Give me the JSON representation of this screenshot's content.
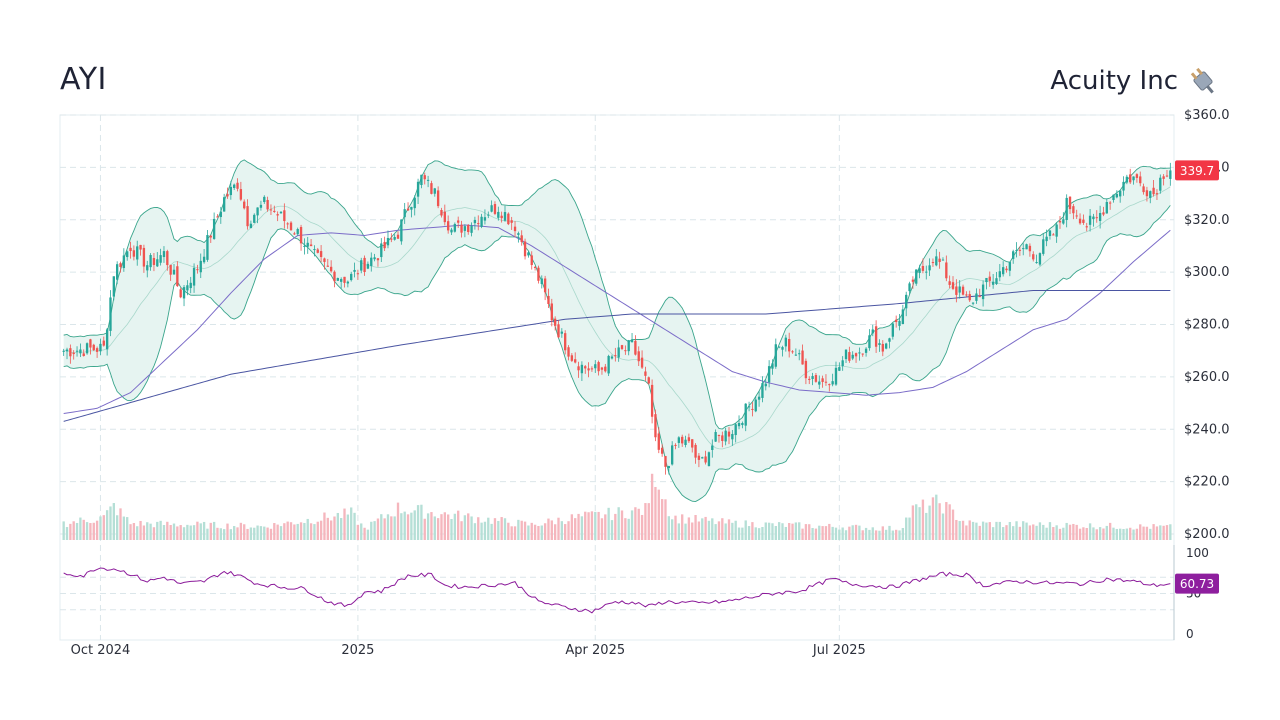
{
  "header": {
    "ticker": "AYI",
    "company": "Acuity Inc",
    "logo_icon": "plug-icon"
  },
  "colors": {
    "up": "#26a69a",
    "down": "#ef5350",
    "band_fill": "#e6f4f1",
    "band_line": "#3aa58c",
    "ma50": "#7b6cc8",
    "ma200": "#4a55a2",
    "rsi_line": "#8b1a9a",
    "price_badge": "#f23645",
    "rsi_badge": "#8e1f9e"
  },
  "chart_data": {
    "type": "candlestick",
    "price_axis": {
      "ylim": [
        200,
        360
      ],
      "ticks": [
        "$360.0",
        "$340.0",
        "$320.0",
        "$300.0",
        "$280.0",
        "$260.0",
        "$240.0",
        "$220.0",
        "$200.0"
      ]
    },
    "rsi_axis": {
      "ylim": [
        0,
        100
      ],
      "ticks": [
        "100",
        "50",
        "0"
      ]
    },
    "x_tick_labels": [
      "Oct 2024",
      "2025",
      "Apr 2025",
      "Jul 2025"
    ],
    "last_price_label": "339.7",
    "last_rsi_label": "60.73",
    "grid": true,
    "series_keypoints": {
      "close": [
        [
          0,
          270
        ],
        [
          12,
          271
        ],
        [
          15,
          300
        ],
        [
          20,
          310
        ],
        [
          25,
          303
        ],
        [
          30,
          307
        ],
        [
          35,
          292
        ],
        [
          40,
          302
        ],
        [
          45,
          318
        ],
        [
          48,
          328
        ],
        [
          52,
          334
        ],
        [
          55,
          320
        ],
        [
          60,
          326
        ],
        [
          65,
          321
        ],
        [
          70,
          315
        ],
        [
          75,
          306
        ],
        [
          80,
          300
        ],
        [
          85,
          297
        ],
        [
          90,
          303
        ],
        [
          95,
          308
        ],
        [
          100,
          315
        ],
        [
          103,
          325
        ],
        [
          107,
          336
        ],
        [
          111,
          330
        ],
        [
          116,
          316
        ],
        [
          121,
          318
        ],
        [
          125,
          322
        ],
        [
          130,
          325
        ],
        [
          135,
          318
        ],
        [
          140,
          303
        ],
        [
          143,
          295
        ],
        [
          146,
          283
        ],
        [
          149,
          275
        ],
        [
          152,
          268
        ],
        [
          155,
          264
        ],
        [
          160,
          262
        ],
        [
          165,
          268
        ],
        [
          170,
          272
        ],
        [
          172,
          266
        ],
        [
          175,
          255
        ],
        [
          177,
          234
        ],
        [
          180,
          226
        ],
        [
          184,
          236
        ],
        [
          188,
          233
        ],
        [
          190,
          226
        ],
        [
          195,
          236
        ],
        [
          200,
          240
        ],
        [
          204,
          247
        ],
        [
          207,
          252
        ],
        [
          210,
          259
        ],
        [
          213,
          270
        ],
        [
          216,
          273
        ],
        [
          219,
          269
        ],
        [
          222,
          262
        ],
        [
          227,
          258
        ],
        [
          231,
          262
        ],
        [
          234,
          268
        ],
        [
          238,
          270
        ],
        [
          242,
          276
        ],
        [
          245,
          271
        ],
        [
          248,
          279
        ],
        [
          251,
          285
        ],
        [
          254,
          297
        ],
        [
          257,
          301
        ],
        [
          260,
          306
        ],
        [
          263,
          302
        ],
        [
          265,
          296
        ],
        [
          268,
          292
        ],
        [
          271,
          288
        ],
        [
          274,
          293
        ],
        [
          277,
          296
        ],
        [
          280,
          300
        ],
        [
          284,
          306
        ],
        [
          288,
          310
        ],
        [
          291,
          306
        ],
        [
          294,
          312
        ],
        [
          297,
          316
        ],
        [
          300,
          326
        ],
        [
          303,
          323
        ],
        [
          306,
          318
        ],
        [
          309,
          320
        ],
        [
          312,
          327
        ],
        [
          315,
          331
        ],
        [
          318,
          336
        ],
        [
          320,
          336
        ],
        [
          323,
          333
        ],
        [
          326,
          330
        ],
        [
          329,
          338
        ],
        [
          331,
          340
        ]
      ],
      "ma50": [
        [
          0,
          246
        ],
        [
          10,
          248
        ],
        [
          20,
          254
        ],
        [
          30,
          266
        ],
        [
          40,
          278
        ],
        [
          50,
          292
        ],
        [
          60,
          305
        ],
        [
          70,
          314
        ],
        [
          80,
          315
        ],
        [
          90,
          314
        ],
        [
          100,
          316
        ],
        [
          110,
          317
        ],
        [
          120,
          318
        ],
        [
          130,
          317
        ],
        [
          140,
          310
        ],
        [
          150,
          302
        ],
        [
          160,
          294
        ],
        [
          170,
          286
        ],
        [
          180,
          278
        ],
        [
          190,
          270
        ],
        [
          200,
          262
        ],
        [
          210,
          258
        ],
        [
          220,
          255
        ],
        [
          230,
          254
        ],
        [
          240,
          253
        ],
        [
          250,
          254
        ],
        [
          260,
          256
        ],
        [
          270,
          262
        ],
        [
          280,
          270
        ],
        [
          290,
          278
        ],
        [
          300,
          282
        ],
        [
          310,
          292
        ],
        [
          320,
          304
        ],
        [
          331,
          316
        ]
      ],
      "ma200": [
        [
          0,
          243
        ],
        [
          50,
          261
        ],
        [
          100,
          272
        ],
        [
          150,
          282
        ],
        [
          170,
          284
        ],
        [
          210,
          284
        ],
        [
          250,
          288
        ],
        [
          290,
          293
        ],
        [
          331,
          293
        ]
      ],
      "rsi": [
        [
          0,
          75
        ],
        [
          6,
          72
        ],
        [
          10,
          82
        ],
        [
          16,
          80
        ],
        [
          20,
          74
        ],
        [
          25,
          65
        ],
        [
          30,
          70
        ],
        [
          35,
          62
        ],
        [
          42,
          65
        ],
        [
          48,
          77
        ],
        [
          52,
          73
        ],
        [
          58,
          62
        ],
        [
          65,
          58
        ],
        [
          72,
          56
        ],
        [
          79,
          40
        ],
        [
          85,
          34
        ],
        [
          90,
          52
        ],
        [
          95,
          53
        ],
        [
          103,
          72
        ],
        [
          110,
          73
        ],
        [
          114,
          60
        ],
        [
          120,
          58
        ],
        [
          127,
          60
        ],
        [
          135,
          63
        ],
        [
          142,
          40
        ],
        [
          150,
          33
        ],
        [
          158,
          28
        ],
        [
          165,
          40
        ],
        [
          170,
          39
        ],
        [
          175,
          34
        ],
        [
          180,
          40
        ],
        [
          190,
          38
        ],
        [
          198,
          40
        ],
        [
          205,
          45
        ],
        [
          212,
          50
        ],
        [
          220,
          53
        ],
        [
          230,
          68
        ],
        [
          235,
          62
        ],
        [
          240,
          60
        ],
        [
          248,
          58
        ],
        [
          255,
          66
        ],
        [
          263,
          74
        ],
        [
          270,
          73
        ],
        [
          275,
          60
        ],
        [
          285,
          65
        ],
        [
          295,
          63
        ],
        [
          305,
          62
        ],
        [
          312,
          68
        ],
        [
          320,
          65
        ],
        [
          326,
          60
        ],
        [
          331,
          62
        ]
      ],
      "volume": [
        [
          0,
          0.22
        ],
        [
          12,
          0.3
        ],
        [
          15,
          0.45
        ],
        [
          20,
          0.22
        ],
        [
          60,
          0.18
        ],
        [
          86,
          0.35
        ],
        [
          90,
          0.15
        ],
        [
          100,
          0.42
        ],
        [
          140,
          0.2
        ],
        [
          150,
          0.28
        ],
        [
          174,
          0.4
        ],
        [
          177,
          0.9
        ],
        [
          182,
          0.3
        ],
        [
          200,
          0.22
        ],
        [
          250,
          0.15
        ],
        [
          254,
          0.4
        ],
        [
          262,
          0.5
        ],
        [
          270,
          0.22
        ],
        [
          331,
          0.17
        ]
      ]
    },
    "num_bars": 332
  }
}
